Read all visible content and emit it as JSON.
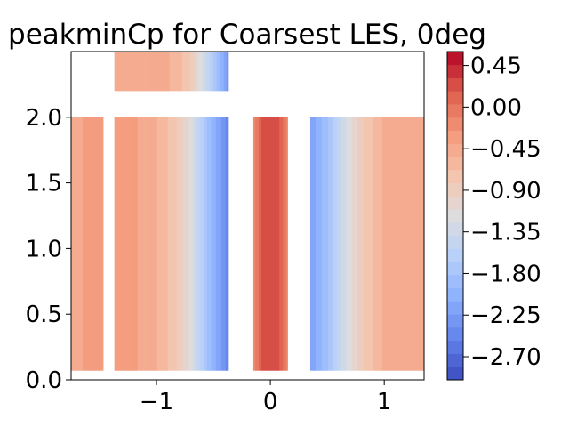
{
  "chart_data": {
    "type": "heatmap",
    "title": "peakminCp for Coarsest LES, 0deg",
    "xlabel": "",
    "ylabel": "",
    "xlim": [
      -1.75,
      1.35
    ],
    "ylim": [
      0.0,
      2.5
    ],
    "x_ticks": [
      -1,
      0,
      1
    ],
    "x_tick_labels": [
      "−1",
      "0",
      "1"
    ],
    "y_ticks": [
      0.0,
      0.5,
      1.0,
      1.5,
      2.0
    ],
    "y_tick_labels": [
      "0.0",
      "0.5",
      "1.0",
      "1.5",
      "2.0"
    ],
    "colormap": "coolwarm",
    "colorbar": {
      "min": -2.95,
      "max": 0.6,
      "levels": 25,
      "ticks": [
        0.45,
        0.0,
        -0.45,
        -0.9,
        -1.35,
        -1.8,
        -2.25,
        -2.7
      ],
      "tick_labels": [
        "0.45",
        "0.00",
        "−0.45",
        "−0.90",
        "−1.35",
        "−1.80",
        "−2.25",
        "−2.70"
      ]
    },
    "panels": [
      {
        "name": "left strip",
        "x": [
          -1.75,
          -1.47
        ],
        "y": [
          0.07,
          2.0
        ],
        "profile": [
          [
            -1.75,
            -0.45
          ],
          [
            -1.47,
            -0.3
          ]
        ]
      },
      {
        "name": "top patch",
        "x": [
          -1.37,
          -0.37
        ],
        "y": [
          2.2,
          2.5
        ],
        "profile": [
          [
            -1.37,
            -0.45
          ],
          [
            -0.95,
            -0.45
          ],
          [
            -0.72,
            -0.75
          ],
          [
            -0.55,
            -1.45
          ],
          [
            -0.37,
            -2.3
          ]
        ]
      },
      {
        "name": "left wall",
        "x": [
          -1.37,
          -0.37
        ],
        "y": [
          0.07,
          2.0
        ],
        "profile": [
          [
            -1.37,
            -0.3
          ],
          [
            -1.05,
            -0.45
          ],
          [
            -0.85,
            -0.75
          ],
          [
            -0.7,
            -1.15
          ],
          [
            -0.55,
            -1.85
          ],
          [
            -0.37,
            -2.45
          ]
        ]
      },
      {
        "name": "center strip",
        "x": [
          -0.15,
          0.15
        ],
        "y": [
          0.07,
          2.0
        ],
        "profile": [
          [
            -0.15,
            -0.2
          ],
          [
            -0.05,
            0.3
          ],
          [
            0.05,
            0.3
          ],
          [
            0.15,
            -0.15
          ]
        ]
      },
      {
        "name": "right wall",
        "x": [
          0.35,
          1.35
        ],
        "y": [
          0.07,
          2.0
        ],
        "profile": [
          [
            0.35,
            -2.2
          ],
          [
            0.5,
            -1.85
          ],
          [
            0.65,
            -1.3
          ],
          [
            0.8,
            -0.85
          ],
          [
            1.0,
            -0.5
          ],
          [
            1.35,
            -0.4
          ]
        ]
      }
    ]
  }
}
